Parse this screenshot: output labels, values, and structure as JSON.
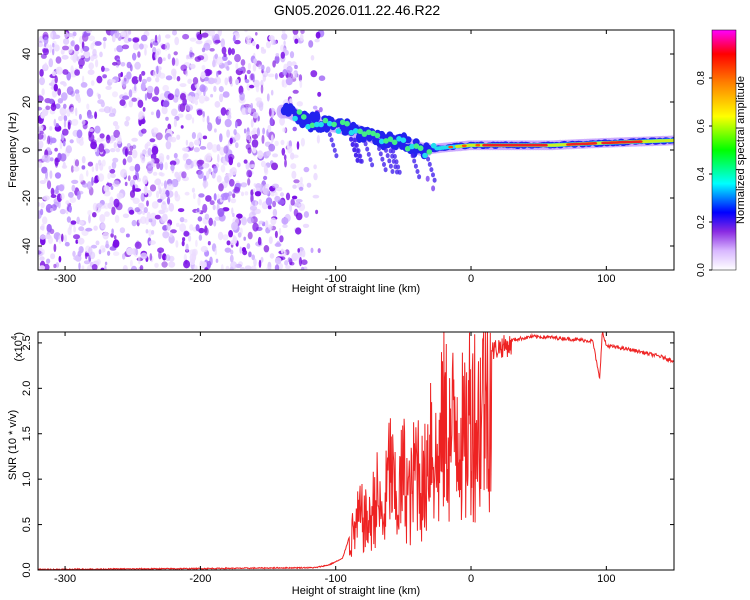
{
  "title": "GN05.2026.011.22.46.R22",
  "chart_data": [
    {
      "type": "heatmap",
      "title": "GN05.2026.011.22.46.R22",
      "xlabel": "Height of straight line (km)",
      "ylabel": "Frequency (Hz)",
      "xlim": [
        -320,
        150
      ],
      "ylim": [
        -50,
        50
      ],
      "xticks": [
        -300,
        -200,
        -100,
        0,
        100
      ],
      "xtick_labels": [
        "-300",
        "-200",
        "-100",
        "0",
        "100"
      ],
      "yticks": [
        -40,
        -20,
        0,
        20,
        40
      ],
      "ytick_labels": [
        "-40",
        "-20",
        "0",
        "20",
        "40"
      ],
      "noise_region_x": [
        -320,
        -125
      ],
      "signal_track": [
        {
          "x": -135,
          "y": 16
        },
        {
          "x": -120,
          "y": 12
        },
        {
          "x": -100,
          "y": 10
        },
        {
          "x": -85,
          "y": 8
        },
        {
          "x": -75,
          "y": 6
        },
        {
          "x": -65,
          "y": 4
        },
        {
          "x": -50,
          "y": 3
        },
        {
          "x": -35,
          "y": 0
        },
        {
          "x": -20,
          "y": 1
        },
        {
          "x": 0,
          "y": 2
        },
        {
          "x": 30,
          "y": 2
        },
        {
          "x": 60,
          "y": 2
        },
        {
          "x": 100,
          "y": 3
        },
        {
          "x": 150,
          "y": 4
        }
      ],
      "colorbar": {
        "label": "Normalized spectral amplitude",
        "range": [
          0,
          1
        ],
        "ticks": [
          0.0,
          0.2,
          0.4,
          0.6,
          0.8
        ],
        "tick_labels": [
          "0.0",
          "0.2",
          "0.4",
          "0.6",
          "0.8"
        ],
        "colors": [
          "#ffffff",
          "#d9b8ff",
          "#8a2be2",
          "#0000ff",
          "#00ffff",
          "#00ff00",
          "#ffff00",
          "#ff8000",
          "#ff0000",
          "#ff00ff"
        ]
      }
    },
    {
      "type": "line",
      "xlabel": "Height of straight line (km)",
      "ylabel": "SNR (10 * v/v)",
      "scale_label": "(x10",
      "scale_exponent": "4",
      "xlim": [
        -320,
        150
      ],
      "ylim": [
        0,
        2.62
      ],
      "xticks": [
        -300,
        -200,
        -100,
        0,
        100
      ],
      "xtick_labels": [
        "-300",
        "-200",
        "-100",
        "0",
        "100"
      ],
      "yticks": [
        0,
        0.5,
        1.0,
        1.5,
        2.0,
        2.5
      ],
      "ytick_labels": [
        "0.0",
        "0.5",
        "1.0",
        "1.5",
        "2.0",
        "2.5"
      ],
      "line_color": "#ee2222",
      "series": [
        {
          "name": "SNR",
          "points": [
            [
              -320,
              0.0
            ],
            [
              -200,
              0.01
            ],
            [
              -115,
              0.02
            ],
            [
              -105,
              0.05
            ],
            [
              -95,
              0.12
            ],
            [
              -88,
              0.45
            ],
            [
              -82,
              0.7
            ],
            [
              -75,
              0.6
            ],
            [
              -70,
              1.0
            ],
            [
              -65,
              0.6
            ],
            [
              -60,
              1.4
            ],
            [
              -55,
              0.8
            ],
            [
              -50,
              1.3
            ],
            [
              -45,
              0.9
            ],
            [
              -40,
              1.5
            ],
            [
              -35,
              1.0
            ],
            [
              -30,
              1.9
            ],
            [
              -25,
              1.3
            ],
            [
              -20,
              2.0
            ],
            [
              -15,
              1.7
            ],
            [
              -10,
              2.1
            ],
            [
              -5,
              1.6
            ],
            [
              0,
              2.2
            ],
            [
              5,
              1.9
            ],
            [
              10,
              2.4
            ],
            [
              15,
              2.45
            ],
            [
              20,
              2.5
            ],
            [
              30,
              2.53
            ],
            [
              45,
              2.57
            ],
            [
              60,
              2.56
            ],
            [
              75,
              2.54
            ],
            [
              90,
              2.52
            ],
            [
              95,
              2.1
            ],
            [
              97,
              2.62
            ],
            [
              100,
              2.47
            ],
            [
              120,
              2.42
            ],
            [
              140,
              2.35
            ],
            [
              150,
              2.3
            ]
          ]
        }
      ]
    }
  ]
}
